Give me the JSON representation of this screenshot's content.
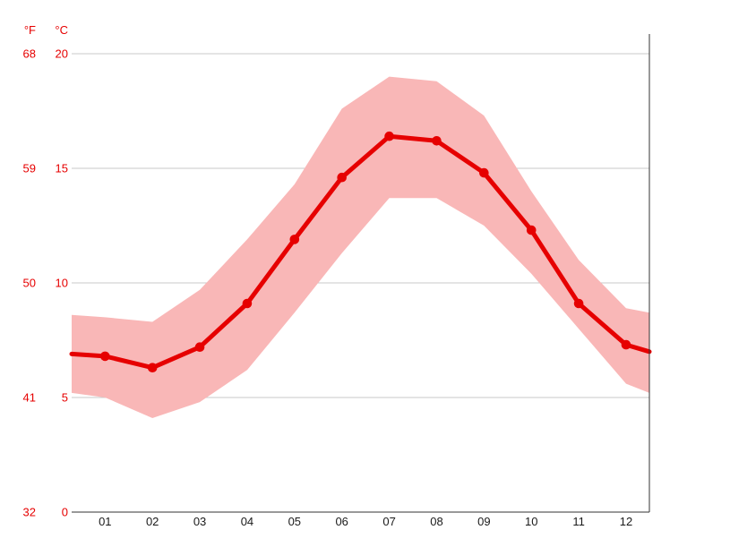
{
  "chart_data": {
    "type": "line",
    "title": "",
    "unit_f": "°F",
    "unit_c": "°C",
    "categories": [
      "01",
      "02",
      "03",
      "04",
      "05",
      "06",
      "07",
      "08",
      "09",
      "10",
      "11",
      "12"
    ],
    "axis_c_ticks": [
      20,
      15,
      10,
      5,
      0
    ],
    "axis_f_ticks": [
      68,
      59,
      50,
      41,
      32
    ],
    "ylim_c": [
      0,
      20
    ],
    "grid": "horizontal-only",
    "series": [
      {
        "name": "mean-temperature",
        "values": [
          6.8,
          6.3,
          7.2,
          9.1,
          11.9,
          14.6,
          16.4,
          16.2,
          14.8,
          12.3,
          9.1,
          7.3
        ],
        "edge_start": 6.9,
        "edge_end": 7.0
      },
      {
        "name": "daily-max-band-upper",
        "values": [
          8.5,
          8.3,
          9.7,
          11.9,
          14.3,
          17.6,
          19.0,
          18.8,
          17.3,
          14.0,
          11.0,
          8.9
        ],
        "edge_start": 8.6,
        "edge_end": 8.7
      },
      {
        "name": "daily-min-band-lower",
        "values": [
          5.0,
          4.1,
          4.8,
          6.2,
          8.7,
          11.3,
          13.7,
          13.7,
          12.5,
          10.4,
          8.0,
          5.6
        ],
        "edge_start": 5.2,
        "edge_end": 5.2
      }
    ],
    "colors": {
      "line": "#e60000",
      "band": "#f9b7b7",
      "grid": "#c8c8c8",
      "axis": "#333333",
      "temp_labels": "#e60000",
      "month_labels": "#1a1a1a"
    }
  }
}
